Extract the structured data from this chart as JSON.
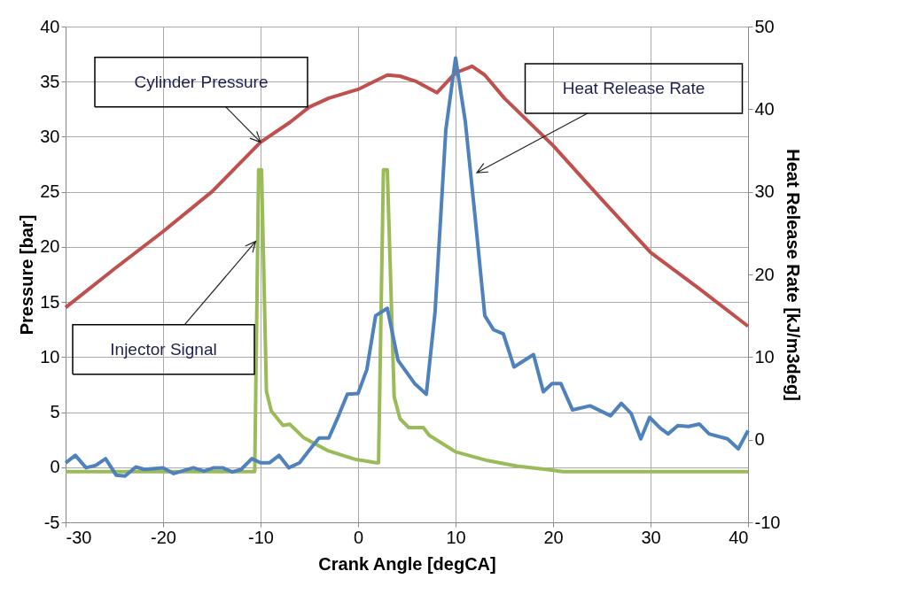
{
  "chart_data": {
    "type": "line",
    "xlabel": "Crank Angle [degCA]",
    "ylabel": "Pressure [bar]",
    "y2label": "Heat Release Rate [kJ/m3deg]",
    "xlim": [
      -30,
      40
    ],
    "xticks": [
      -30,
      -20,
      -10,
      0,
      10,
      20,
      30,
      40
    ],
    "ylim": [
      -5,
      40
    ],
    "yticks": [
      -5,
      0,
      5,
      10,
      15,
      20,
      25,
      30,
      35,
      40
    ],
    "y2lim": [
      -10,
      50
    ],
    "y2ticks": [
      -10,
      0,
      10,
      20,
      30,
      40,
      50
    ],
    "grid": true,
    "legend": false,
    "marker": "none",
    "line_style": "solid",
    "series": [
      {
        "color": "#c0504d",
        "x": [
          -30,
          -25,
          -20,
          -15,
          -10,
          -7,
          -5,
          -3,
          0,
          3,
          4.3,
          6,
          8.1,
          10,
          11.7,
          13,
          15,
          20,
          25,
          30,
          35,
          40
        ],
        "values": [
          14.5,
          18,
          21.4,
          25.0,
          29.5,
          31.3,
          32.7,
          33.5,
          34.3,
          35.6,
          35.5,
          35.0,
          34.0,
          35.8,
          36.4,
          35.6,
          33.5,
          29.2,
          24.3,
          19.5,
          16.2,
          12.8
        ]
      },
      {
        "color": "#9bbb59",
        "x": [
          -30,
          -20,
          -11,
          -10.6,
          -10.2,
          -9.9,
          -9.4,
          -8.9,
          -7.7,
          -7.0,
          -5.6,
          -3.1,
          -0.2,
          1.9,
          2.1,
          2.6,
          3.0,
          3.7,
          4.3,
          5.2,
          6.7,
          7.3,
          10,
          13.3,
          16.3,
          19.3,
          21,
          30,
          40
        ],
        "values": [
          -0.4,
          -0.4,
          -0.4,
          -0.4,
          27,
          27,
          6.9,
          5.1,
          3.8,
          3.9,
          2.7,
          1.5,
          0.7,
          0.4,
          0.4,
          27,
          27,
          6.4,
          4.4,
          3.6,
          3.6,
          2.9,
          1.4,
          0.6,
          0.1,
          -0.2,
          -0.4,
          -0.4,
          -0.4
        ]
      },
      {
        "color": "#4f81bd",
        "axis": "y2",
        "x": [
          -30,
          -29,
          -27.9,
          -26.9,
          -25.9,
          -24.8,
          -23.9,
          -22.8,
          -21.9,
          -20,
          -18.9,
          -16.9,
          -15.8,
          -14.8,
          -13.9,
          -12.9,
          -12,
          -10.9,
          -10,
          -9.1,
          -8.1,
          -7.1,
          -6,
          -4.9,
          -4,
          -3,
          -2,
          -1.1,
          0,
          0.9,
          1.8,
          3,
          4.1,
          5.8,
          7,
          7.9,
          9,
          10,
          11,
          12,
          13,
          13.9,
          14.9,
          16,
          18,
          19,
          19.9,
          20.8,
          22,
          23.8,
          25.9,
          27,
          28,
          29,
          29.9,
          31,
          31.8,
          32.8,
          33.9,
          35,
          36,
          37.9,
          39,
          40
        ],
        "values": [
          -2.8,
          -1.9,
          -3.4,
          -3.1,
          -2.3,
          -4.3,
          -4.4,
          -3.3,
          -3.6,
          -3.4,
          -4.1,
          -3.4,
          -3.8,
          -3.4,
          -3.4,
          -3.9,
          -3.6,
          -2.3,
          -2.8,
          -2.8,
          -1.9,
          -3.4,
          -2.8,
          -1.1,
          0.2,
          0.2,
          2.9,
          5.5,
          5.6,
          8.5,
          15.0,
          15.9,
          9.6,
          6.8,
          5.5,
          15.5,
          37.5,
          46.2,
          38.5,
          27,
          15,
          13.3,
          12.8,
          8.8,
          10.3,
          5.8,
          6.8,
          6.8,
          3.6,
          4.1,
          2.9,
          4.4,
          3.2,
          0.1,
          2.7,
          1.4,
          0.7,
          1.7,
          1.6,
          1.9,
          0.7,
          0.1,
          -1.1,
          1.1
        ]
      }
    ],
    "annotations": [
      {
        "text": "Cylinder Pressure",
        "x": -10,
        "y": 29.5
      },
      "Heat Release Rate",
      {
        "text": "Injector Signal",
        "x": -10.5,
        "y": 20.5
      }
    ]
  }
}
